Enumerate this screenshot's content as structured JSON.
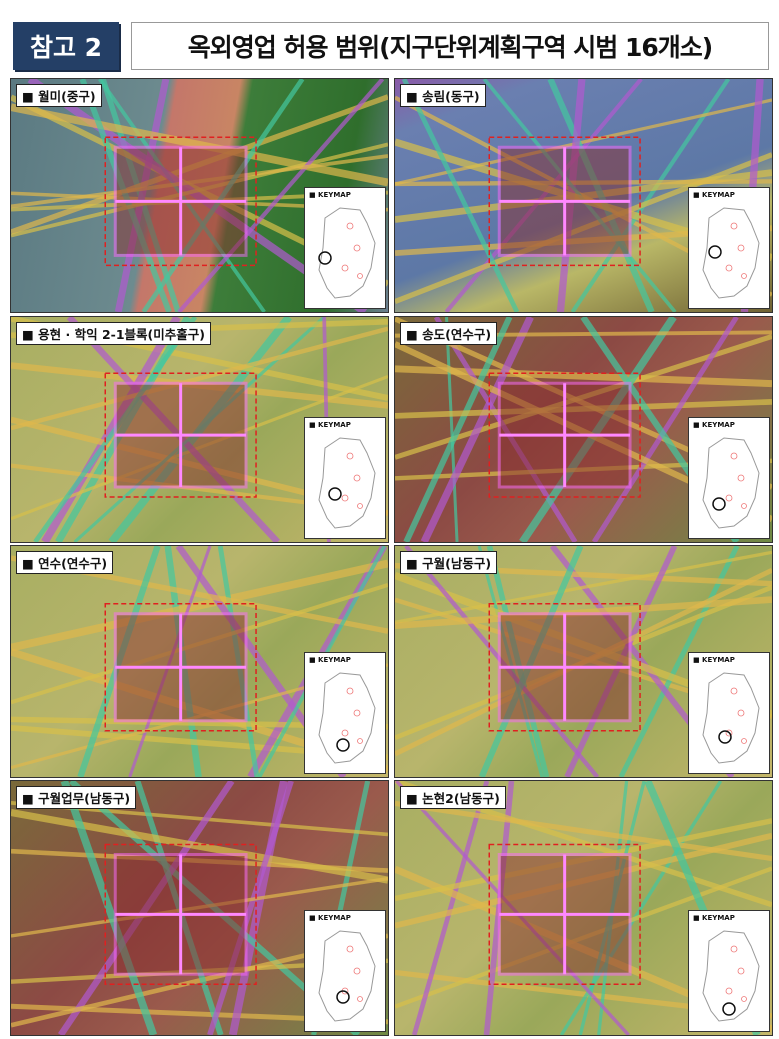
{
  "header": {
    "badge": "참고 2",
    "title": "옥외영업 허용 범위(지구단위계획구역 시범 16개소)"
  },
  "keymap_label": "■ KEYMAP",
  "panels": [
    {
      "label": "■ 월미(중구)",
      "theme": "sea"
    },
    {
      "label": "■ 송림(동구)",
      "theme": "industrial"
    },
    {
      "label": "■ 용현 · 학익 2-1블록(미추홀구)",
      "theme": "yellow"
    },
    {
      "label": "■ 송도(연수구)",
      "theme": "brown"
    },
    {
      "label": "■ 연수(연수구)",
      "theme": "yellow"
    },
    {
      "label": "■ 구월(남동구)",
      "theme": "yellow"
    },
    {
      "label": "■ 구월업무(남동구)",
      "theme": "brown"
    },
    {
      "label": "■ 논현2(남동구)",
      "theme": "yellow"
    }
  ],
  "colors": {
    "badge": "#243f66",
    "district_outline": "#ff66ff",
    "boundary": "#e02020"
  }
}
